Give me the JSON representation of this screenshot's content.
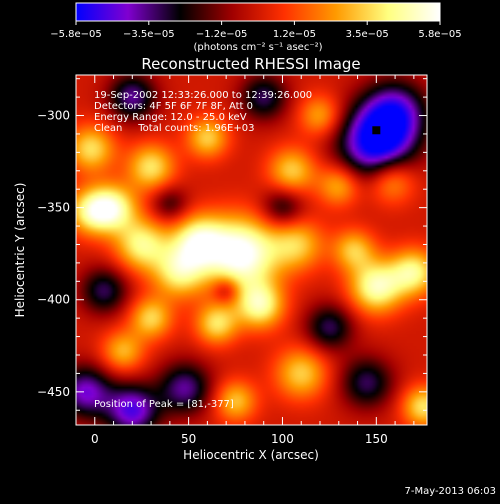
{
  "chart_data": {
    "type": "heatmap",
    "title": "Reconstructed RHESSI Image",
    "xlabel": "Heliocentric X (arcsec)",
    "ylabel": "Heliocentric Y (arcsec)",
    "xlim": [
      -10,
      177
    ],
    "ylim": [
      -468,
      -278
    ],
    "x_ticks": [
      0,
      50,
      100,
      150
    ],
    "x_tick_labels": [
      "0",
      "50",
      "100",
      "150"
    ],
    "y_ticks": [
      -300,
      -350,
      -400,
      -450
    ],
    "y_tick_labels": [
      "−300",
      "−350",
      "−400",
      "−450"
    ],
    "colorbar": {
      "range": [
        -5.8e-05,
        5.8e-05
      ],
      "tick_labels": [
        "−5.8e−05",
        "−3.5e−05",
        "−1.2e−05",
        "1.2e−05",
        "3.5e−05",
        "5.8e−05"
      ],
      "unit_label": "(photons cm⁻² s⁻¹ asec⁻²)",
      "colormap": [
        "#0000ff",
        "#8000d0",
        "#000000",
        "#a00000",
        "#ff3000",
        "#ff9a00",
        "#ffff80",
        "#ffffff"
      ]
    },
    "annotations": [
      "19-Sep-2002 12:33:26.000 to 12:39:26.000",
      "Detectors: 4F 5F 6F 7F 8F, Att 0",
      "Energy Range: 12.0 - 25.0 keV",
      "Clean     Total counts: 1.96E+03"
    ],
    "peak_label": "Position of Peak = [81,-377]",
    "peak": {
      "x": 81,
      "y": -377
    },
    "sources": [
      {
        "x": 78,
        "y": -375,
        "v": 5.8e-05,
        "r": 14
      },
      {
        "x": 55,
        "y": -368,
        "v": 4.2e-05,
        "r": 10
      },
      {
        "x": 45,
        "y": -385,
        "v": 3.8e-05,
        "r": 10
      },
      {
        "x": 25,
        "y": -370,
        "v": 4e-05,
        "r": 10
      },
      {
        "x": 10,
        "y": -350,
        "v": 4e-05,
        "r": 9
      },
      {
        "x": -2,
        "y": -352,
        "v": 3.8e-05,
        "r": 9
      },
      {
        "x": 30,
        "y": -328,
        "v": 3.6e-05,
        "r": 9
      },
      {
        "x": -2,
        "y": -318,
        "v": 3.5e-05,
        "r": 9
      },
      {
        "x": 60,
        "y": -312,
        "v": 3.2e-05,
        "r": 8
      },
      {
        "x": 105,
        "y": -330,
        "v": 3.2e-05,
        "r": 9
      },
      {
        "x": 108,
        "y": -370,
        "v": 3e-05,
        "r": 10
      },
      {
        "x": 88,
        "y": -403,
        "v": 4.2e-05,
        "r": 9
      },
      {
        "x": 65,
        "y": -413,
        "v": 3.5e-05,
        "r": 8
      },
      {
        "x": 30,
        "y": -410,
        "v": 3.3e-05,
        "r": 8
      },
      {
        "x": 15,
        "y": -428,
        "v": 2.8e-05,
        "r": 8
      },
      {
        "x": 150,
        "y": -393,
        "v": 4.6e-05,
        "r": 10
      },
      {
        "x": 170,
        "y": -385,
        "v": 4e-05,
        "r": 9
      },
      {
        "x": 138,
        "y": -373,
        "v": 3e-05,
        "r": 8
      },
      {
        "x": 158,
        "y": -335,
        "v": 3e-05,
        "r": 9
      },
      {
        "x": 130,
        "y": -338,
        "v": 2.8e-05,
        "r": 8
      },
      {
        "x": 110,
        "y": -440,
        "v": 3.2e-05,
        "r": 10
      },
      {
        "x": 75,
        "y": -455,
        "v": 3e-05,
        "r": 8
      },
      {
        "x": 175,
        "y": -458,
        "v": 3.6e-05,
        "r": 8
      },
      {
        "x": 120,
        "y": -300,
        "v": 2.6e-05,
        "r": 8
      },
      {
        "x": 150,
        "y": -315,
        "v": -5.8e-05,
        "r": 14
      },
      {
        "x": 160,
        "y": -298,
        "v": -4e-05,
        "r": 12
      },
      {
        "x": 20,
        "y": -460,
        "v": -4.5e-05,
        "r": 10
      },
      {
        "x": -5,
        "y": -450,
        "v": -4e-05,
        "r": 10
      },
      {
        "x": 20,
        "y": -290,
        "v": -3.5e-05,
        "r": 9
      },
      {
        "x": 48,
        "y": -448,
        "v": -3.5e-05,
        "r": 10
      },
      {
        "x": 125,
        "y": -415,
        "v": -3e-05,
        "r": 9
      },
      {
        "x": 70,
        "y": -395,
        "v": -2e-05,
        "r": 5
      },
      {
        "x": 100,
        "y": -350,
        "v": -2.5e-05,
        "r": 8
      },
      {
        "x": 5,
        "y": -395,
        "v": -3e-05,
        "r": 9
      },
      {
        "x": 145,
        "y": -445,
        "v": -3e-05,
        "r": 10
      },
      {
        "x": 90,
        "y": -290,
        "v": -3e-05,
        "r": 9
      },
      {
        "x": 40,
        "y": -348,
        "v": -2e-05,
        "r": 7
      }
    ]
  },
  "footer": {
    "date": "7-May-2013 06:03"
  }
}
